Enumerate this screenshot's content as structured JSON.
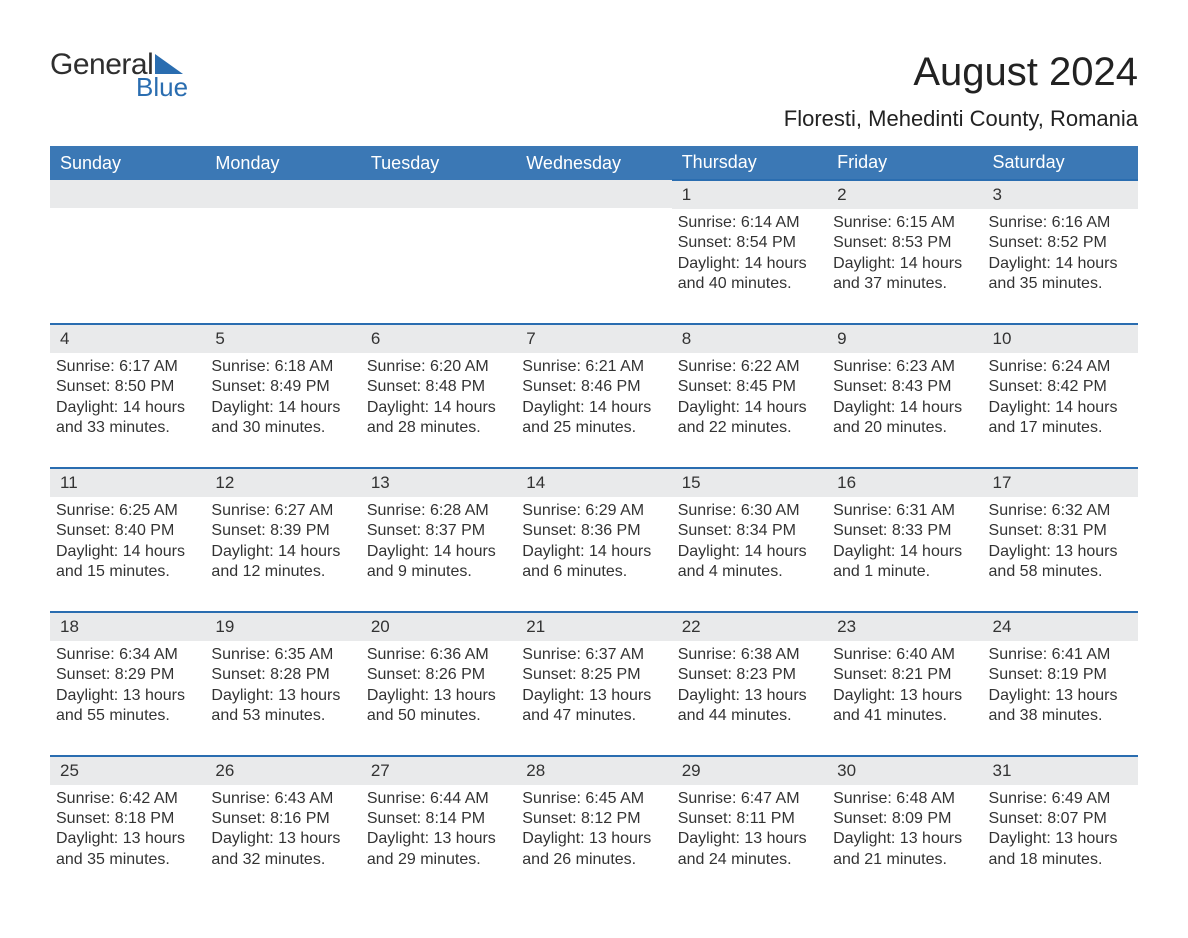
{
  "logo": {
    "text1": "General",
    "text2": "Blue",
    "color1": "#2f2f2f",
    "color2": "#2a6db0",
    "triangle_color": "#2a6db0"
  },
  "title": "August 2024",
  "subtitle": "Floresti, Mehedinti County, Romania",
  "header_bg": "#3b78b5",
  "header_fg": "#ffffff",
  "daynum_bg": "#e9eaeb",
  "border_color": "#2a6db0",
  "text_color": "#333333",
  "weekdays": [
    "Sunday",
    "Monday",
    "Tuesday",
    "Wednesday",
    "Thursday",
    "Friday",
    "Saturday"
  ],
  "weeks": [
    [
      null,
      null,
      null,
      null,
      {
        "n": "1",
        "sr": "Sunrise: 6:14 AM",
        "ss": "Sunset: 8:54 PM",
        "d1": "Daylight: 14 hours",
        "d2": "and 40 minutes."
      },
      {
        "n": "2",
        "sr": "Sunrise: 6:15 AM",
        "ss": "Sunset: 8:53 PM",
        "d1": "Daylight: 14 hours",
        "d2": "and 37 minutes."
      },
      {
        "n": "3",
        "sr": "Sunrise: 6:16 AM",
        "ss": "Sunset: 8:52 PM",
        "d1": "Daylight: 14 hours",
        "d2": "and 35 minutes."
      }
    ],
    [
      {
        "n": "4",
        "sr": "Sunrise: 6:17 AM",
        "ss": "Sunset: 8:50 PM",
        "d1": "Daylight: 14 hours",
        "d2": "and 33 minutes."
      },
      {
        "n": "5",
        "sr": "Sunrise: 6:18 AM",
        "ss": "Sunset: 8:49 PM",
        "d1": "Daylight: 14 hours",
        "d2": "and 30 minutes."
      },
      {
        "n": "6",
        "sr": "Sunrise: 6:20 AM",
        "ss": "Sunset: 8:48 PM",
        "d1": "Daylight: 14 hours",
        "d2": "and 28 minutes."
      },
      {
        "n": "7",
        "sr": "Sunrise: 6:21 AM",
        "ss": "Sunset: 8:46 PM",
        "d1": "Daylight: 14 hours",
        "d2": "and 25 minutes."
      },
      {
        "n": "8",
        "sr": "Sunrise: 6:22 AM",
        "ss": "Sunset: 8:45 PM",
        "d1": "Daylight: 14 hours",
        "d2": "and 22 minutes."
      },
      {
        "n": "9",
        "sr": "Sunrise: 6:23 AM",
        "ss": "Sunset: 8:43 PM",
        "d1": "Daylight: 14 hours",
        "d2": "and 20 minutes."
      },
      {
        "n": "10",
        "sr": "Sunrise: 6:24 AM",
        "ss": "Sunset: 8:42 PM",
        "d1": "Daylight: 14 hours",
        "d2": "and 17 minutes."
      }
    ],
    [
      {
        "n": "11",
        "sr": "Sunrise: 6:25 AM",
        "ss": "Sunset: 8:40 PM",
        "d1": "Daylight: 14 hours",
        "d2": "and 15 minutes."
      },
      {
        "n": "12",
        "sr": "Sunrise: 6:27 AM",
        "ss": "Sunset: 8:39 PM",
        "d1": "Daylight: 14 hours",
        "d2": "and 12 minutes."
      },
      {
        "n": "13",
        "sr": "Sunrise: 6:28 AM",
        "ss": "Sunset: 8:37 PM",
        "d1": "Daylight: 14 hours",
        "d2": "and 9 minutes."
      },
      {
        "n": "14",
        "sr": "Sunrise: 6:29 AM",
        "ss": "Sunset: 8:36 PM",
        "d1": "Daylight: 14 hours",
        "d2": "and 6 minutes."
      },
      {
        "n": "15",
        "sr": "Sunrise: 6:30 AM",
        "ss": "Sunset: 8:34 PM",
        "d1": "Daylight: 14 hours",
        "d2": "and 4 minutes."
      },
      {
        "n": "16",
        "sr": "Sunrise: 6:31 AM",
        "ss": "Sunset: 8:33 PM",
        "d1": "Daylight: 14 hours",
        "d2": "and 1 minute."
      },
      {
        "n": "17",
        "sr": "Sunrise: 6:32 AM",
        "ss": "Sunset: 8:31 PM",
        "d1": "Daylight: 13 hours",
        "d2": "and 58 minutes."
      }
    ],
    [
      {
        "n": "18",
        "sr": "Sunrise: 6:34 AM",
        "ss": "Sunset: 8:29 PM",
        "d1": "Daylight: 13 hours",
        "d2": "and 55 minutes."
      },
      {
        "n": "19",
        "sr": "Sunrise: 6:35 AM",
        "ss": "Sunset: 8:28 PM",
        "d1": "Daylight: 13 hours",
        "d2": "and 53 minutes."
      },
      {
        "n": "20",
        "sr": "Sunrise: 6:36 AM",
        "ss": "Sunset: 8:26 PM",
        "d1": "Daylight: 13 hours",
        "d2": "and 50 minutes."
      },
      {
        "n": "21",
        "sr": "Sunrise: 6:37 AM",
        "ss": "Sunset: 8:25 PM",
        "d1": "Daylight: 13 hours",
        "d2": "and 47 minutes."
      },
      {
        "n": "22",
        "sr": "Sunrise: 6:38 AM",
        "ss": "Sunset: 8:23 PM",
        "d1": "Daylight: 13 hours",
        "d2": "and 44 minutes."
      },
      {
        "n": "23",
        "sr": "Sunrise: 6:40 AM",
        "ss": "Sunset: 8:21 PM",
        "d1": "Daylight: 13 hours",
        "d2": "and 41 minutes."
      },
      {
        "n": "24",
        "sr": "Sunrise: 6:41 AM",
        "ss": "Sunset: 8:19 PM",
        "d1": "Daylight: 13 hours",
        "d2": "and 38 minutes."
      }
    ],
    [
      {
        "n": "25",
        "sr": "Sunrise: 6:42 AM",
        "ss": "Sunset: 8:18 PM",
        "d1": "Daylight: 13 hours",
        "d2": "and 35 minutes."
      },
      {
        "n": "26",
        "sr": "Sunrise: 6:43 AM",
        "ss": "Sunset: 8:16 PM",
        "d1": "Daylight: 13 hours",
        "d2": "and 32 minutes."
      },
      {
        "n": "27",
        "sr": "Sunrise: 6:44 AM",
        "ss": "Sunset: 8:14 PM",
        "d1": "Daylight: 13 hours",
        "d2": "and 29 minutes."
      },
      {
        "n": "28",
        "sr": "Sunrise: 6:45 AM",
        "ss": "Sunset: 8:12 PM",
        "d1": "Daylight: 13 hours",
        "d2": "and 26 minutes."
      },
      {
        "n": "29",
        "sr": "Sunrise: 6:47 AM",
        "ss": "Sunset: 8:11 PM",
        "d1": "Daylight: 13 hours",
        "d2": "and 24 minutes."
      },
      {
        "n": "30",
        "sr": "Sunrise: 6:48 AM",
        "ss": "Sunset: 8:09 PM",
        "d1": "Daylight: 13 hours",
        "d2": "and 21 minutes."
      },
      {
        "n": "31",
        "sr": "Sunrise: 6:49 AM",
        "ss": "Sunset: 8:07 PM",
        "d1": "Daylight: 13 hours",
        "d2": "and 18 minutes."
      }
    ]
  ]
}
